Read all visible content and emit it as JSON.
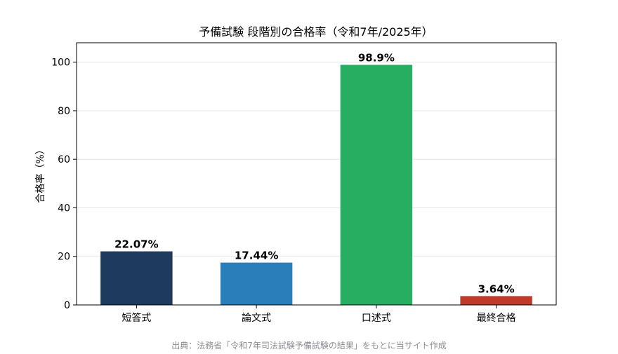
{
  "chart_data": {
    "type": "bar",
    "title": "予備試験 段階別の合格率（令和7年/2025年）",
    "ylabel": "合格率（%）",
    "xlabel": "",
    "categories": [
      "短答式",
      "論文式",
      "口述式",
      "最終合格"
    ],
    "values": [
      22.07,
      17.44,
      98.9,
      3.64
    ],
    "value_labels": [
      "22.07%",
      "17.44%",
      "98.9%",
      "3.64%"
    ],
    "colors": [
      "#1f3a5f",
      "#2a7fba",
      "#27ae60",
      "#c0392b"
    ],
    "ylim": [
      0,
      108
    ],
    "yticks": [
      0,
      20,
      40,
      60,
      80,
      100
    ],
    "grid": true
  },
  "source": "出典：法務省「令和7年司法試験予備試験の結果」をもとに当サイト作成"
}
